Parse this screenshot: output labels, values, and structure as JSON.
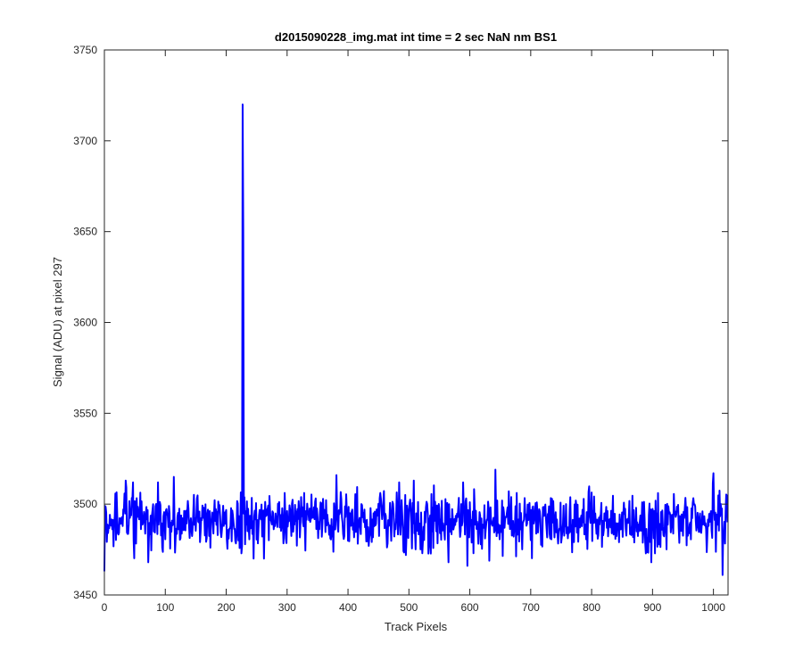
{
  "chart_data": {
    "type": "line",
    "title": "d2015090228_img.mat int time = 2 sec  NaN nm BS1",
    "xlabel": "Track Pixels",
    "ylabel": "Signal (ADU) at pixel 297",
    "xlim": [
      0,
      1024
    ],
    "ylim": [
      3450,
      3750
    ],
    "xticks": [
      "0",
      "100",
      "200",
      "300",
      "400",
      "500",
      "600",
      "700",
      "800",
      "900",
      "1000"
    ],
    "yticks": [
      "3450",
      "3500",
      "3550",
      "3600",
      "3650",
      "3700",
      "3750"
    ],
    "grid": false,
    "line_color": "#0000ff",
    "series": [
      {
        "n_points": 1024,
        "baseline": 3491,
        "noise_std": 8,
        "spike": {
          "x": 227,
          "y": 3720
        },
        "notable_points": [
          {
            "x": 0,
            "y": 3463
          },
          {
            "x": 35,
            "y": 3513
          },
          {
            "x": 114,
            "y": 3515
          },
          {
            "x": 228,
            "y": 3650
          },
          {
            "x": 245,
            "y": 3470
          },
          {
            "x": 262,
            "y": 3470
          },
          {
            "x": 381,
            "y": 3516
          },
          {
            "x": 508,
            "y": 3513
          },
          {
            "x": 596,
            "y": 3466
          },
          {
            "x": 642,
            "y": 3519
          },
          {
            "x": 1000,
            "y": 3517
          },
          {
            "x": 1015,
            "y": 3461
          },
          {
            "x": 1023,
            "y": 3490
          }
        ]
      }
    ]
  }
}
